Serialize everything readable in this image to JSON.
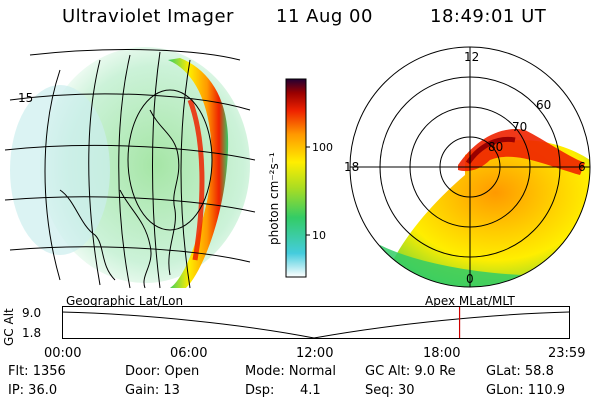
{
  "header": {
    "instrument": "Ultraviolet Imager",
    "date": "11 Aug 00",
    "time": "18:49:01 UT"
  },
  "colorbar": {
    "unit_label": "photon cm⁻²s⁻¹",
    "tick_100": "100",
    "tick_10": "10"
  },
  "left_panel": {
    "caption": "Geographic Lat/Lon",
    "edge_tick": "15"
  },
  "right_panel": {
    "caption": "Apex MLat/MLT",
    "mlt_12": "12",
    "mlt_18": "18",
    "mlt_6": "6",
    "mlt_0": "0",
    "lat_60": "60",
    "lat_70": "70",
    "lat_80": "80"
  },
  "timeline": {
    "ylabel": "GC Alt",
    "y_hi": "9.0",
    "y_lo": "1.8",
    "t0": "00:00",
    "t1": "06:00",
    "t2": "12:00",
    "t3": "18:00",
    "t4": "23:59",
    "current_marker_hours": 18.82
  },
  "status": {
    "flt": "Flt: 1356",
    "ip": "IP: 36.0",
    "door": "Door: Open",
    "gain": "Gain: 13",
    "mode": "Mode: Normal",
    "dsp_label": "Dsp:",
    "dsp_value": "4.1",
    "gcalt": "GC Alt: 9.0 Re",
    "seq": "Seq: 30",
    "glat": "GLat: 58.8",
    "glon": "GLon: 110.9"
  },
  "colors": {
    "marker": "#cc0000",
    "scale": [
      "#ffffff",
      "#44ccdd",
      "#33cc66",
      "#aadd22",
      "#ffee00",
      "#ff9900",
      "#ee2200",
      "#990000",
      "#220033"
    ]
  }
}
